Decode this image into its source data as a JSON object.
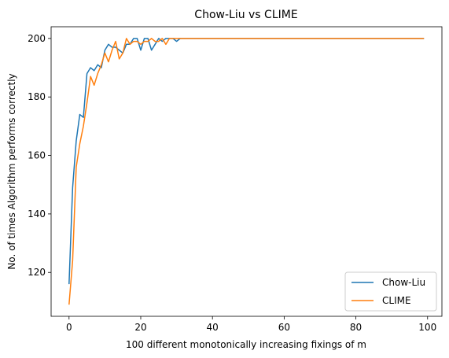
{
  "chart_data": {
    "type": "line",
    "title": "Chow-Liu vs CLIME",
    "xlabel": "100 different monotonically increasing fixings of m",
    "ylabel": "No. of times Algorithm performs correctly",
    "xlim": [
      -5,
      104
    ],
    "ylim": [
      105,
      204
    ],
    "xticks": [
      0,
      20,
      40,
      60,
      80,
      100
    ],
    "yticks": [
      120,
      140,
      160,
      180,
      200
    ],
    "grid": false,
    "legend_position": "lower-right",
    "series": [
      {
        "name": "Chow-Liu",
        "color": "#1f77b4",
        "x": [
          0,
          1,
          2,
          3,
          4,
          5,
          6,
          7,
          8,
          9,
          10,
          11,
          12,
          13,
          14,
          15,
          16,
          17,
          18,
          19,
          20,
          21,
          22,
          23,
          24,
          25,
          26,
          27,
          28,
          29,
          30,
          31,
          99
        ],
        "y": [
          116,
          149,
          165,
          174,
          173,
          188,
          190,
          189,
          191,
          190,
          196,
          198,
          197,
          197,
          196,
          195,
          198,
          198,
          200,
          200,
          196,
          200,
          200,
          196,
          198,
          200,
          199,
          200,
          200,
          200,
          199,
          200,
          200
        ]
      },
      {
        "name": "CLIME",
        "color": "#ff7f0e",
        "x": [
          0,
          1,
          2,
          3,
          4,
          5,
          6,
          7,
          8,
          9,
          10,
          11,
          12,
          13,
          14,
          15,
          16,
          17,
          18,
          19,
          20,
          21,
          22,
          23,
          24,
          25,
          26,
          27,
          28,
          29,
          30,
          31,
          99
        ],
        "y": [
          109,
          124,
          156,
          164,
          170,
          178,
          187,
          184,
          188,
          191,
          195,
          192,
          196,
          199,
          193,
          195,
          200,
          198,
          199,
          199,
          198,
          199,
          199,
          200,
          199,
          199,
          200,
          198,
          200,
          200,
          200,
          200,
          200
        ]
      }
    ]
  }
}
